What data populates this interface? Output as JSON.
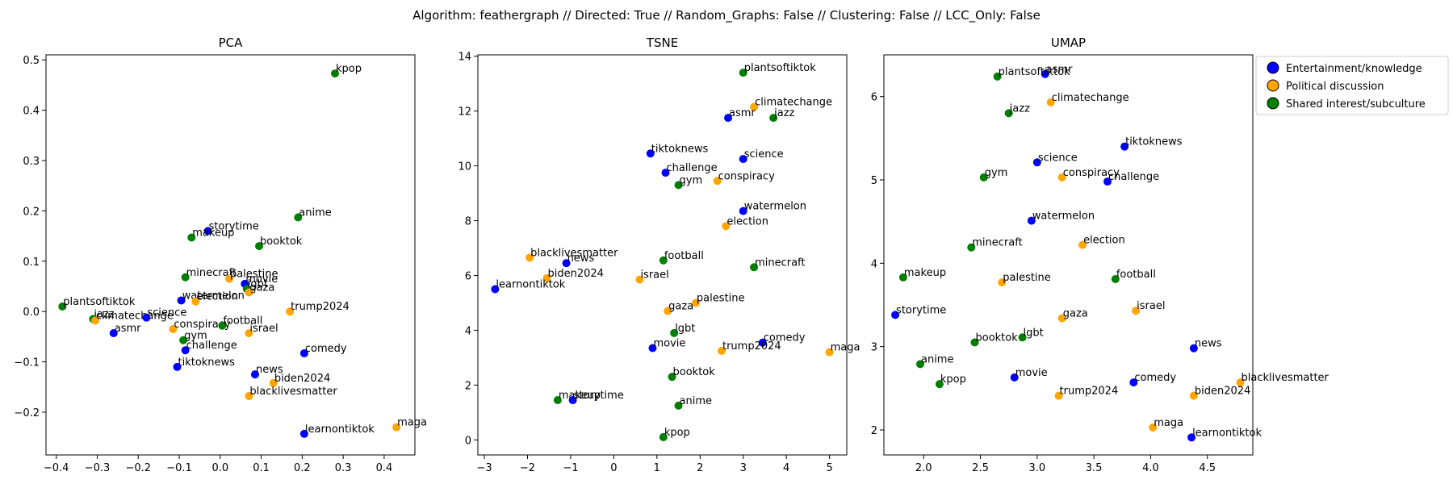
{
  "figure": {
    "suptitle": "Algorithm: feathergraph // Directed: True // Random_Graphs: False // Clustering: False // LCC_Only: False",
    "legend": {
      "placement": "outside-right",
      "entries": [
        {
          "label": "Entertainment/knowledge",
          "color": "#0000ff"
        },
        {
          "label": "Political discussion",
          "color": "#ffa500"
        },
        {
          "label": "Shared interest/subculture",
          "color": "#008000"
        }
      ]
    }
  },
  "chart_data": [
    {
      "type": "scatter",
      "title": "PCA",
      "xlabel": "",
      "ylabel": "",
      "xlim": [
        -0.425,
        0.475
      ],
      "ylim": [
        -0.285,
        0.51
      ],
      "xticks": [
        -0.4,
        -0.3,
        -0.2,
        -0.1,
        0.0,
        0.1,
        0.2,
        0.3,
        0.4
      ],
      "xticklabels": [
        "−0.4",
        "−0.3",
        "−0.2",
        "−0.1",
        "0.0",
        "0.1",
        "0.2",
        "0.3",
        "0.4"
      ],
      "yticks": [
        -0.2,
        -0.1,
        0.0,
        0.1,
        0.2,
        0.3,
        0.4,
        0.5
      ],
      "yticklabels": [
        "−0.2",
        "−0.1",
        "0.0",
        "0.1",
        "0.2",
        "0.3",
        "0.4",
        "0.5"
      ],
      "grid": false,
      "points": [
        {
          "label": "kpop",
          "category": 2,
          "x": 0.28,
          "y": 0.473
        },
        {
          "label": "anime",
          "category": 2,
          "x": 0.19,
          "y": 0.187
        },
        {
          "label": "storytime",
          "category": 0,
          "x": -0.03,
          "y": 0.16
        },
        {
          "label": "makeup",
          "category": 2,
          "x": -0.07,
          "y": 0.147
        },
        {
          "label": "booktok",
          "category": 2,
          "x": 0.095,
          "y": 0.13
        },
        {
          "label": "minecraft",
          "category": 2,
          "x": -0.085,
          "y": 0.068
        },
        {
          "label": "palestine",
          "category": 1,
          "x": 0.022,
          "y": 0.065
        },
        {
          "label": "movie",
          "category": 0,
          "x": 0.06,
          "y": 0.055
        },
        {
          "label": "lgbt",
          "category": 2,
          "x": 0.065,
          "y": 0.045
        },
        {
          "label": "gaza",
          "category": 1,
          "x": 0.07,
          "y": 0.038
        },
        {
          "label": "watermelon",
          "category": 0,
          "x": -0.095,
          "y": 0.022
        },
        {
          "label": "election",
          "category": 1,
          "x": -0.06,
          "y": 0.02
        },
        {
          "label": "plantsoftiktok",
          "category": 2,
          "x": -0.385,
          "y": 0.01
        },
        {
          "label": "trump2024",
          "category": 1,
          "x": 0.17,
          "y": 0.0
        },
        {
          "label": "jazz",
          "category": 2,
          "x": -0.31,
          "y": -0.015
        },
        {
          "label": "climatechange",
          "category": 1,
          "x": -0.305,
          "y": -0.018
        },
        {
          "label": "science",
          "category": 0,
          "x": -0.18,
          "y": -0.012
        },
        {
          "label": "conspiracy",
          "category": 1,
          "x": -0.115,
          "y": -0.035
        },
        {
          "label": "football",
          "category": 2,
          "x": 0.005,
          "y": -0.028
        },
        {
          "label": "asmr",
          "category": 0,
          "x": -0.26,
          "y": -0.043
        },
        {
          "label": "israel",
          "category": 1,
          "x": 0.07,
          "y": -0.043
        },
        {
          "label": "gym",
          "category": 2,
          "x": -0.09,
          "y": -0.057
        },
        {
          "label": "challenge",
          "category": 0,
          "x": -0.085,
          "y": -0.077
        },
        {
          "label": "comedy",
          "category": 0,
          "x": 0.205,
          "y": -0.083
        },
        {
          "label": "tiktoknews",
          "category": 0,
          "x": -0.105,
          "y": -0.11
        },
        {
          "label": "news",
          "category": 0,
          "x": 0.085,
          "y": -0.125
        },
        {
          "label": "biden2024",
          "category": 1,
          "x": 0.13,
          "y": -0.142
        },
        {
          "label": "blacklivesmatter",
          "category": 1,
          "x": 0.07,
          "y": -0.168
        },
        {
          "label": "maga",
          "category": 1,
          "x": 0.43,
          "y": -0.23
        },
        {
          "label": "learnontiktok",
          "category": 0,
          "x": 0.205,
          "y": -0.243
        }
      ]
    },
    {
      "type": "scatter",
      "title": "TSNE",
      "xlabel": "",
      "ylabel": "",
      "xlim": [
        -3.15,
        5.4
      ],
      "ylim": [
        -0.55,
        14.05
      ],
      "xticks": [
        -3,
        -2,
        -1,
        0,
        1,
        2,
        3,
        4,
        5
      ],
      "xticklabels": [
        "−3",
        "−2",
        "−1",
        "0",
        "1",
        "2",
        "3",
        "4",
        "5"
      ],
      "yticks": [
        0,
        2,
        4,
        6,
        8,
        10,
        12,
        14
      ],
      "yticklabels": [
        "0",
        "2",
        "4",
        "6",
        "8",
        "10",
        "12",
        "14"
      ],
      "grid": false,
      "points": [
        {
          "label": "plantsoftiktok",
          "category": 2,
          "x": 3.0,
          "y": 13.4
        },
        {
          "label": "climatechange",
          "category": 1,
          "x": 3.25,
          "y": 12.15
        },
        {
          "label": "asmr",
          "category": 0,
          "x": 2.65,
          "y": 11.75
        },
        {
          "label": "jazz",
          "category": 2,
          "x": 3.7,
          "y": 11.75
        },
        {
          "label": "tiktoknews",
          "category": 0,
          "x": 0.85,
          "y": 10.45
        },
        {
          "label": "science",
          "category": 0,
          "x": 3.0,
          "y": 10.25
        },
        {
          "label": "challenge",
          "category": 0,
          "x": 1.2,
          "y": 9.75
        },
        {
          "label": "conspiracy",
          "category": 1,
          "x": 2.4,
          "y": 9.45
        },
        {
          "label": "gym",
          "category": 2,
          "x": 1.5,
          "y": 9.3
        },
        {
          "label": "watermelon",
          "category": 0,
          "x": 3.0,
          "y": 8.35
        },
        {
          "label": "election",
          "category": 1,
          "x": 2.6,
          "y": 7.8
        },
        {
          "label": "blacklivesmatter",
          "category": 1,
          "x": -1.95,
          "y": 6.65
        },
        {
          "label": "football",
          "category": 2,
          "x": 1.15,
          "y": 6.55
        },
        {
          "label": "news",
          "category": 0,
          "x": -1.1,
          "y": 6.45
        },
        {
          "label": "minecraft",
          "category": 2,
          "x": 3.25,
          "y": 6.3
        },
        {
          "label": "biden2024",
          "category": 1,
          "x": -1.55,
          "y": 5.9
        },
        {
          "label": "israel",
          "category": 1,
          "x": 0.6,
          "y": 5.85
        },
        {
          "label": "learnontiktok",
          "category": 0,
          "x": -2.75,
          "y": 5.5
        },
        {
          "label": "palestine",
          "category": 1,
          "x": 1.9,
          "y": 5.0
        },
        {
          "label": "gaza",
          "category": 1,
          "x": 1.25,
          "y": 4.7
        },
        {
          "label": "lgbt",
          "category": 2,
          "x": 1.4,
          "y": 3.9
        },
        {
          "label": "comedy",
          "category": 0,
          "x": 3.45,
          "y": 3.55
        },
        {
          "label": "movie",
          "category": 0,
          "x": 0.9,
          "y": 3.35
        },
        {
          "label": "trump2024",
          "category": 1,
          "x": 2.5,
          "y": 3.25
        },
        {
          "label": "maga",
          "category": 1,
          "x": 5.0,
          "y": 3.2
        },
        {
          "label": "booktok",
          "category": 2,
          "x": 1.35,
          "y": 2.3
        },
        {
          "label": "makeup",
          "category": 2,
          "x": -1.3,
          "y": 1.45
        },
        {
          "label": "storytime",
          "category": 0,
          "x": -0.95,
          "y": 1.45
        },
        {
          "label": "anime",
          "category": 2,
          "x": 1.5,
          "y": 1.25
        },
        {
          "label": "kpop",
          "category": 2,
          "x": 1.15,
          "y": 0.1
        }
      ]
    },
    {
      "type": "scatter",
      "title": "UMAP",
      "xlabel": "",
      "ylabel": "",
      "xlim": [
        1.65,
        4.9
      ],
      "ylim": [
        1.7,
        6.5
      ],
      "xticks": [
        2.0,
        2.5,
        3.0,
        3.5,
        4.0,
        4.5
      ],
      "xticklabels": [
        "2.0",
        "2.5",
        "3.0",
        "3.5",
        "4.0",
        "4.5"
      ],
      "yticks": [
        2,
        3,
        4,
        5,
        6
      ],
      "yticklabels": [
        "2",
        "3",
        "4",
        "5",
        "6"
      ],
      "grid": false,
      "points": [
        {
          "label": "asmr",
          "category": 0,
          "x": 3.07,
          "y": 6.27
        },
        {
          "label": "plantsoftiktok",
          "category": 2,
          "x": 2.65,
          "y": 6.24
        },
        {
          "label": "climatechange",
          "category": 1,
          "x": 3.12,
          "y": 5.93
        },
        {
          "label": "jazz",
          "category": 2,
          "x": 2.75,
          "y": 5.8
        },
        {
          "label": "tiktoknews",
          "category": 0,
          "x": 3.77,
          "y": 5.4
        },
        {
          "label": "science",
          "category": 0,
          "x": 3.0,
          "y": 5.21
        },
        {
          "label": "gym",
          "category": 2,
          "x": 2.53,
          "y": 5.03
        },
        {
          "label": "conspiracy",
          "category": 1,
          "x": 3.22,
          "y": 5.03
        },
        {
          "label": "challenge",
          "category": 0,
          "x": 3.62,
          "y": 4.98
        },
        {
          "label": "watermelon",
          "category": 0,
          "x": 2.95,
          "y": 4.51
        },
        {
          "label": "election",
          "category": 1,
          "x": 3.4,
          "y": 4.22
        },
        {
          "label": "minecraft",
          "category": 2,
          "x": 2.42,
          "y": 4.19
        },
        {
          "label": "makeup",
          "category": 2,
          "x": 1.82,
          "y": 3.83
        },
        {
          "label": "football",
          "category": 2,
          "x": 3.69,
          "y": 3.81
        },
        {
          "label": "palestine",
          "category": 1,
          "x": 2.69,
          "y": 3.77
        },
        {
          "label": "israel",
          "category": 1,
          "x": 3.87,
          "y": 3.43
        },
        {
          "label": "storytime",
          "category": 0,
          "x": 1.75,
          "y": 3.38
        },
        {
          "label": "gaza",
          "category": 1,
          "x": 3.22,
          "y": 3.34
        },
        {
          "label": "lgbt",
          "category": 2,
          "x": 2.87,
          "y": 3.11
        },
        {
          "label": "booktok",
          "category": 2,
          "x": 2.45,
          "y": 3.05
        },
        {
          "label": "news",
          "category": 0,
          "x": 4.38,
          "y": 2.98
        },
        {
          "label": "anime",
          "category": 2,
          "x": 1.97,
          "y": 2.79
        },
        {
          "label": "movie",
          "category": 0,
          "x": 2.8,
          "y": 2.63
        },
        {
          "label": "kpop",
          "category": 2,
          "x": 2.14,
          "y": 2.55
        },
        {
          "label": "comedy",
          "category": 0,
          "x": 3.85,
          "y": 2.57
        },
        {
          "label": "blacklivesmatter",
          "category": 1,
          "x": 4.79,
          "y": 2.57
        },
        {
          "label": "trump2024",
          "category": 1,
          "x": 3.19,
          "y": 2.41
        },
        {
          "label": "biden2024",
          "category": 1,
          "x": 4.38,
          "y": 2.41
        },
        {
          "label": "maga",
          "category": 1,
          "x": 4.02,
          "y": 2.03
        },
        {
          "label": "learnontiktok",
          "category": 0,
          "x": 4.36,
          "y": 1.91
        }
      ]
    }
  ]
}
